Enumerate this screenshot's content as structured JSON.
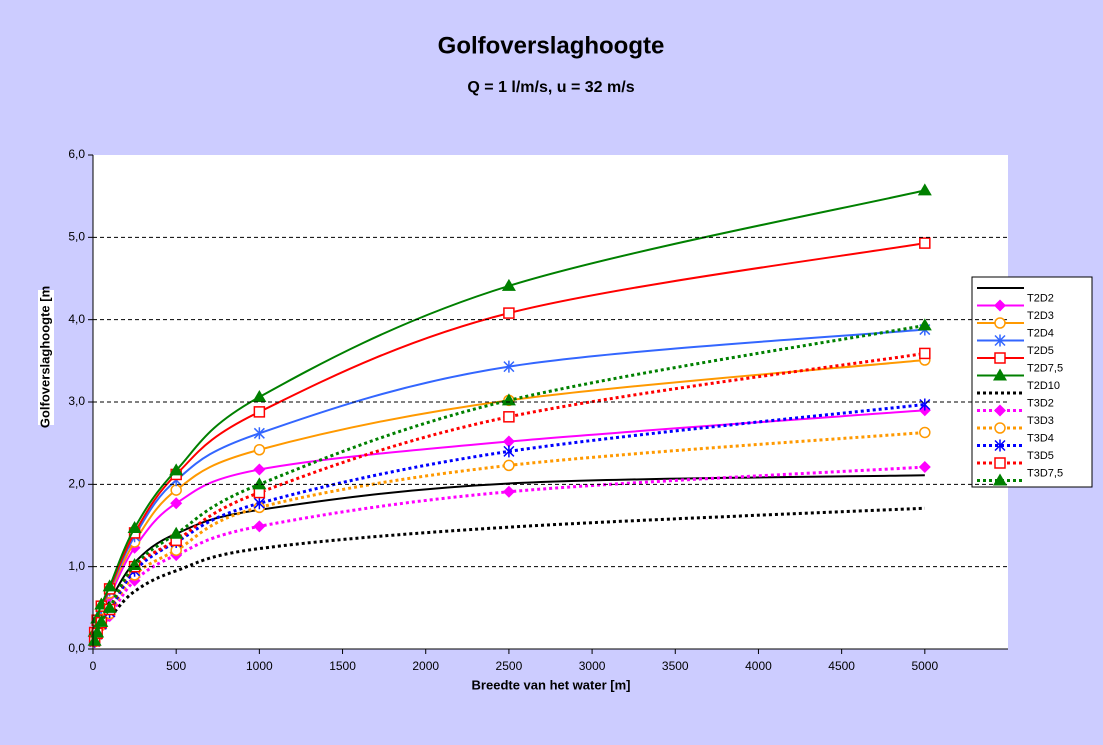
{
  "chart_data": {
    "type": "line",
    "title": "Golfoverslaghoogte",
    "subtitle": "Q = 1 l/m/s, u = 32 m/s",
    "x_label": "Breedte van het water [m]",
    "y_label": "Golfoverslaghoogte [m",
    "x": [
      10,
      25,
      50,
      100,
      250,
      500,
      1000,
      2500,
      5000
    ],
    "xlim": [
      0,
      5500
    ],
    "xticks": [
      0,
      500,
      1000,
      1500,
      2000,
      2500,
      3000,
      3500,
      4000,
      4500,
      5000
    ],
    "ylim": [
      0,
      6
    ],
    "yticks": [
      {
        "value": 0,
        "label": "0,0"
      },
      {
        "value": 1,
        "label": "1,0"
      },
      {
        "value": 2,
        "label": "2,0"
      },
      {
        "value": 3,
        "label": "3,0"
      },
      {
        "value": 4,
        "label": "4,0"
      },
      {
        "value": 5,
        "label": "5,0"
      },
      {
        "value": 6,
        "label": "6,0"
      }
    ],
    "grid": true,
    "smooth": true,
    "legend": "right",
    "series": [
      {
        "name": null,
        "color": "#000000",
        "style": "solid",
        "marker": "none",
        "values": [
          0.15,
          0.28,
          0.42,
          0.58,
          1.05,
          1.4,
          1.69,
          2.01,
          2.11
        ]
      },
      {
        "name": "T2D2",
        "color": "#ff00ff",
        "style": "solid",
        "marker": "diamond",
        "values": [
          0.17,
          0.31,
          0.46,
          0.64,
          1.23,
          1.77,
          2.18,
          2.52,
          2.9
        ]
      },
      {
        "name": "T2D3",
        "color": "#ff9900",
        "style": "solid",
        "marker": "circle",
        "values": [
          0.18,
          0.33,
          0.48,
          0.68,
          1.3,
          1.93,
          2.42,
          3.02,
          3.51
        ]
      },
      {
        "name": "T2D4",
        "color": "#3366ff",
        "style": "solid",
        "marker": "star",
        "values": [
          0.19,
          0.34,
          0.5,
          0.71,
          1.37,
          2.05,
          2.62,
          3.43,
          3.88
        ]
      },
      {
        "name": "T2D5",
        "color": "#ff0000",
        "style": "solid",
        "marker": "square",
        "values": [
          0.2,
          0.35,
          0.52,
          0.73,
          1.41,
          2.12,
          2.88,
          4.08,
          4.93
        ]
      },
      {
        "name": "T2D7,5",
        "color": "#008000",
        "style": "solid",
        "marker": "triangle",
        "values": [
          0.21,
          0.37,
          0.54,
          0.76,
          1.47,
          2.17,
          3.06,
          4.41,
          5.57
        ]
      },
      {
        "name": "T2D10",
        "color": "#000000",
        "style": "dotted",
        "marker": "none",
        "values": [
          0.1,
          0.18,
          0.27,
          0.38,
          0.7,
          0.95,
          1.22,
          1.48,
          1.71
        ]
      },
      {
        "name": "T3D2",
        "color": "#ff00ff",
        "style": "dotted",
        "marker": "diamond",
        "values": [
          0.08,
          0.16,
          0.27,
          0.4,
          0.83,
          1.14,
          1.49,
          1.91,
          2.21
        ]
      },
      {
        "name": "T3D3",
        "color": "#ff9900",
        "style": "dotted",
        "marker": "circle",
        "values": [
          0.09,
          0.17,
          0.29,
          0.43,
          0.9,
          1.2,
          1.72,
          2.23,
          2.63
        ]
      },
      {
        "name": "T3D4",
        "color": "#0000ff",
        "style": "dotted",
        "marker": "star",
        "values": [
          0.09,
          0.18,
          0.3,
          0.45,
          0.95,
          1.3,
          1.77,
          2.4,
          2.97
        ]
      },
      {
        "name": "T3D5",
        "color": "#ff0000",
        "style": "dotted",
        "marker": "square",
        "values": [
          0.1,
          0.19,
          0.32,
          0.48,
          1.0,
          1.32,
          1.9,
          2.82,
          3.59
        ]
      },
      {
        "name": "T3D7,5",
        "color": "#008000",
        "style": "dotted",
        "marker": "triangle",
        "values": [
          0.1,
          0.2,
          0.33,
          0.5,
          1.02,
          1.4,
          2.0,
          3.02,
          3.93
        ]
      }
    ]
  }
}
